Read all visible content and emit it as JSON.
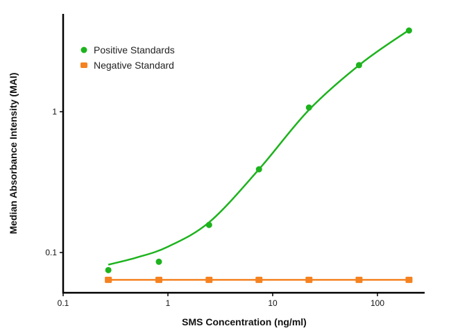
{
  "chart_data": {
    "type": "scatter",
    "title": "",
    "xlabel": "SMS Concentration (ng/ml)",
    "ylabel": "Median Absorbance Intensity (MAI)",
    "xscale": "log",
    "yscale": "log",
    "xlim": [
      0.1,
      270
    ],
    "ylim": [
      0.052,
      5
    ],
    "xticks": [
      {
        "v": 0.1,
        "label": "0.1"
      },
      {
        "v": 1,
        "label": "1"
      },
      {
        "v": 10,
        "label": "10"
      },
      {
        "v": 100,
        "label": "100"
      }
    ],
    "yticks": [
      {
        "v": 0.1,
        "label": "0.1"
      },
      {
        "v": 1,
        "label": "1"
      }
    ],
    "grid": false,
    "legend_position": "top-left",
    "series": [
      {
        "name": "Positive Standards",
        "color": "#1db31d",
        "marker": "circle",
        "x": [
          0.27,
          0.82,
          2.47,
          7.4,
          22.2,
          66.7,
          200
        ],
        "y": [
          0.075,
          0.086,
          0.157,
          0.39,
          1.07,
          2.14,
          3.77
        ],
        "fit_curve": {
          "x": [
            0.27,
            0.5,
            1,
            2.5,
            7.4,
            22.2,
            70,
            200
          ],
          "y": [
            0.082,
            0.092,
            0.11,
            0.165,
            0.39,
            1.03,
            2.2,
            3.8
          ]
        }
      },
      {
        "name": "Negative Standard",
        "color": "#f58220",
        "marker": "square",
        "x": [
          0.27,
          0.82,
          2.47,
          7.4,
          22.2,
          66.7,
          200
        ],
        "y": [
          0.064,
          0.064,
          0.064,
          0.064,
          0.064,
          0.064,
          0.064
        ]
      }
    ]
  }
}
